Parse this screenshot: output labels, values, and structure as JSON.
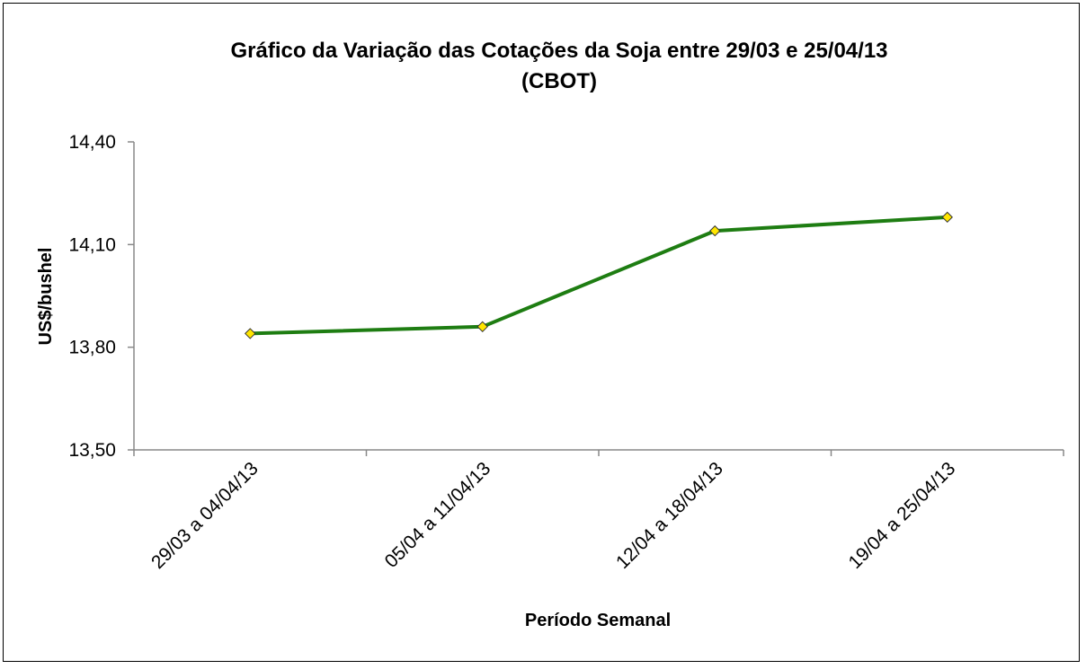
{
  "chart_data": {
    "type": "line",
    "title": "Gráfico da Variação das Cotações da Soja entre 29/03 e 25/04/13",
    "subtitle": "(CBOT)",
    "xlabel": "Período Semanal",
    "ylabel": "US$/bushel",
    "categories": [
      "29/03 a 04/04/13",
      "05/04 a 11/04/13",
      "12/04 a 18/04/13",
      "19/04 a 25/04/13"
    ],
    "series": [
      {
        "values": [
          13.84,
          13.86,
          14.14,
          14.18
        ],
        "color": "#1e7d12",
        "marker_color": "#ffe600"
      }
    ],
    "ylim": [
      13.5,
      14.4
    ],
    "yticks": [
      "13,50",
      "13,80",
      "14,10",
      "14,40"
    ],
    "ytick_values": [
      13.5,
      13.8,
      14.1,
      14.4
    ],
    "grid": false,
    "legend": "none"
  }
}
